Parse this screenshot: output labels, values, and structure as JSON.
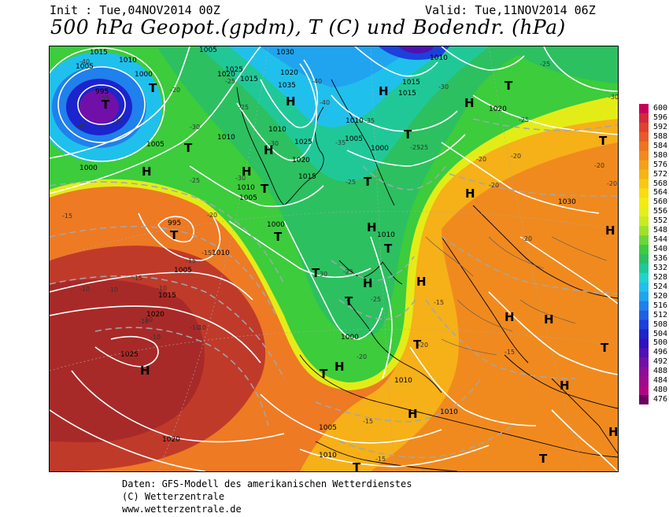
{
  "header": {
    "init": "Init : Tue,04NOV2014 00Z",
    "valid": "Valid: Tue,11NOV2014 06Z",
    "title": "500 hPa Geopot.(gpdm), T (C) und Bodendr. (hPa)"
  },
  "colorbar": {
    "labels": [
      "600",
      "596",
      "592",
      "588",
      "584",
      "580",
      "576",
      "572",
      "568",
      "564",
      "560",
      "556",
      "552",
      "548",
      "544",
      "540",
      "536",
      "532",
      "528",
      "524",
      "520",
      "516",
      "512",
      "508",
      "504",
      "500",
      "496",
      "492",
      "488",
      "484",
      "480",
      "476"
    ],
    "colors": [
      "#c8005a",
      "#d4283c",
      "#e04030",
      "#e85a28",
      "#ee7420",
      "#f28a1c",
      "#f6a018",
      "#f8b414",
      "#fac810",
      "#fadc10",
      "#f4ec10",
      "#e4f018",
      "#c8ec20",
      "#9ee228",
      "#6cd634",
      "#3ccc3c",
      "#2cc060",
      "#20c898",
      "#20d4cc",
      "#20c0ec",
      "#20a4f0",
      "#2080ec",
      "#2060e4",
      "#1c40dc",
      "#1c24cc",
      "#3010c0",
      "#5010b4",
      "#7010a8",
      "#8c0c9c",
      "#a00890",
      "#b00484",
      "#6a0060"
    ]
  },
  "pressure_labels": [
    "1015",
    "1010",
    "1005",
    "1000",
    "995",
    "1020",
    "1025",
    "1030",
    "1035",
    "1005",
    "1010",
    "1015",
    "1020",
    "1000",
    "995",
    "1010",
    "1005",
    "1015",
    "1020",
    "1025",
    "1000",
    "1005",
    "1010",
    "1010",
    "1015",
    "1020",
    "1030",
    "1010",
    "1000",
    "1010",
    "1005",
    "1010",
    "1015",
    "1005",
    "1010",
    "1005",
    "1000",
    "1025",
    "1020",
    "1010",
    "1015",
    "1010",
    "1020"
  ],
  "temp_labels": [
    "-40",
    "-35",
    "-40",
    "-35",
    "-30",
    "-25",
    "-25",
    "-20",
    "-25",
    "-30",
    "-40",
    "-40",
    "-35",
    "-30",
    "-30",
    "-25",
    "-35",
    "-20",
    "-25",
    "-30",
    "-20",
    "-25",
    "-15",
    "-20",
    "-15",
    "-10",
    "-10",
    "-10",
    "-10",
    "-10",
    "-15",
    "-15",
    "-20",
    "-20",
    "-25",
    "-25",
    "-30",
    "-15",
    "-20",
    "-15",
    "-25",
    "-20",
    "-15",
    "-20",
    "-10",
    "-15",
    "-10",
    "-10",
    "-20",
    "-25"
  ],
  "highs": [
    "H",
    "H",
    "H",
    "H",
    "H",
    "H",
    "H",
    "H",
    "H",
    "H",
    "H",
    "H",
    "H",
    "H",
    "H",
    "H",
    "H",
    "H"
  ],
  "lows": [
    "T",
    "T",
    "T",
    "T",
    "T",
    "T",
    "T",
    "T",
    "T",
    "T",
    "T",
    "T",
    "T",
    "T",
    "T",
    "T",
    "T",
    "T"
  ],
  "footer": {
    "line1": "Daten: GFS-Modell des amerikanischen Wetterdienstes",
    "line2": "(C) Wetterzentrale",
    "line3": "www.wetterzentrale.de"
  }
}
